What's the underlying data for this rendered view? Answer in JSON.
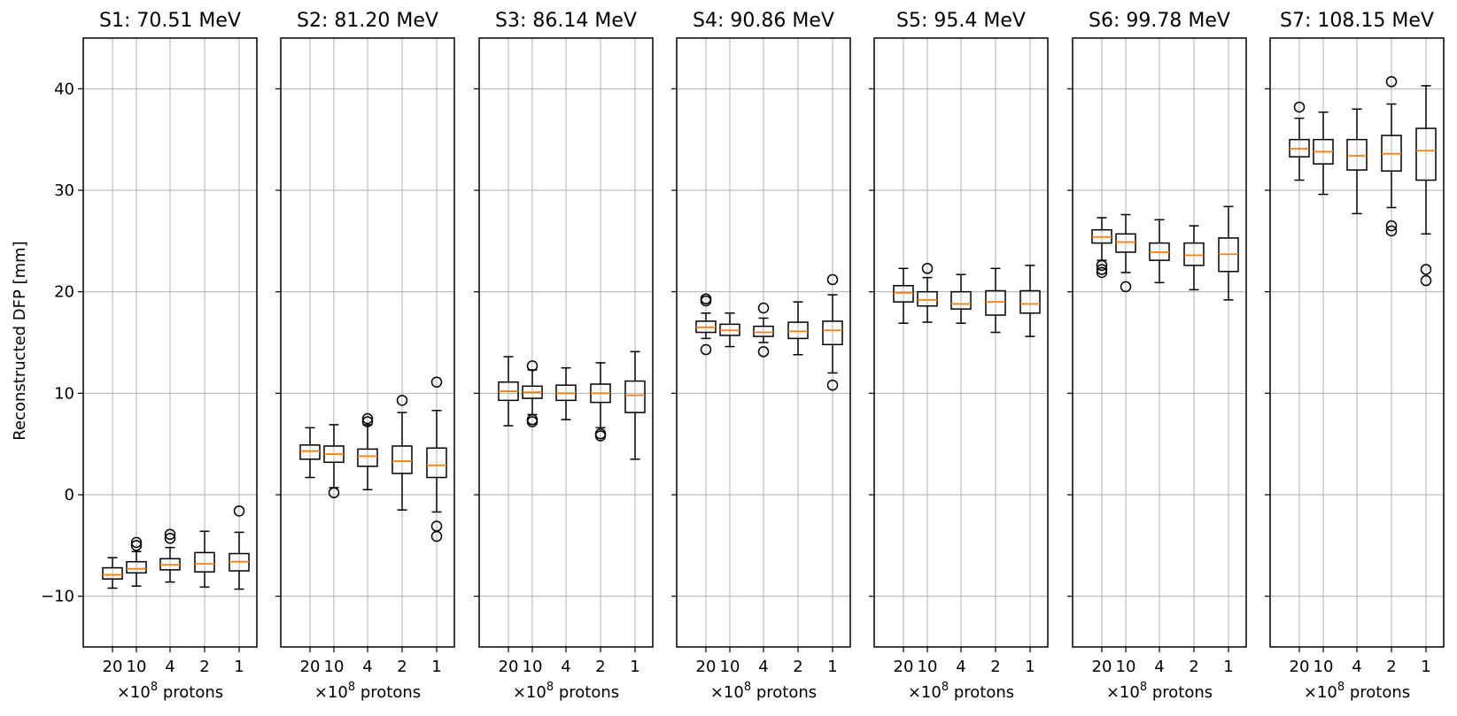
{
  "chart_data": {
    "type": "boxplot",
    "ylabel": "Reconstructed DFP [mm]",
    "xlabel_prefix": "×10",
    "xlabel_exponent": "8",
    "xlabel_suffix": " protons",
    "ylim": [
      -15,
      45
    ],
    "yticks": [
      -10,
      0,
      10,
      20,
      30,
      40
    ],
    "ytick_labels": [
      "−10",
      "0",
      "10",
      "20",
      "30",
      "40"
    ],
    "categories": [
      "20",
      "10",
      "4",
      "2",
      "1"
    ],
    "grid": true,
    "colors": {
      "median": "#ff7f0e",
      "box": "#000000",
      "grid": "#b0b0b0"
    },
    "panels": [
      {
        "title": "S1: 70.51 MeV",
        "boxes": [
          {
            "whislo": -9.2,
            "q1": -8.3,
            "med": -7.9,
            "q3": -7.2,
            "whishi": -6.2,
            "fliers": []
          },
          {
            "whislo": -9.0,
            "q1": -7.7,
            "med": -7.3,
            "q3": -6.6,
            "whishi": -5.6,
            "fliers": [
              -4.7,
              -5.0
            ]
          },
          {
            "whislo": -8.6,
            "q1": -7.4,
            "med": -6.9,
            "q3": -6.3,
            "whishi": -5.2,
            "fliers": [
              -3.9,
              -4.3
            ]
          },
          {
            "whislo": -9.1,
            "q1": -7.6,
            "med": -6.8,
            "q3": -5.7,
            "whishi": -3.6,
            "fliers": []
          },
          {
            "whislo": -9.3,
            "q1": -7.5,
            "med": -6.6,
            "q3": -5.8,
            "whishi": -3.7,
            "fliers": [
              -1.6
            ]
          }
        ]
      },
      {
        "title": "S2: 81.20 MeV",
        "boxes": [
          {
            "whislo": 1.7,
            "q1": 3.5,
            "med": 4.3,
            "q3": 4.9,
            "whishi": 6.6,
            "fliers": []
          },
          {
            "whislo": 0.7,
            "q1": 3.2,
            "med": 4.0,
            "q3": 4.8,
            "whishi": 6.9,
            "fliers": [
              0.2
            ]
          },
          {
            "whislo": 0.5,
            "q1": 2.8,
            "med": 3.8,
            "q3": 4.5,
            "whishi": 6.9,
            "fliers": [
              7.2,
              7.5
            ]
          },
          {
            "whislo": -1.5,
            "q1": 2.1,
            "med": 3.3,
            "q3": 4.8,
            "whishi": 8.1,
            "fliers": [
              9.3
            ]
          },
          {
            "whislo": -1.7,
            "q1": 1.7,
            "med": 2.9,
            "q3": 4.6,
            "whishi": 8.3,
            "fliers": [
              11.1,
              -3.1,
              -4.1
            ]
          }
        ]
      },
      {
        "title": "S3: 86.14 MeV",
        "boxes": [
          {
            "whislo": 6.8,
            "q1": 9.3,
            "med": 10.2,
            "q3": 11.1,
            "whishi": 13.6,
            "fliers": []
          },
          {
            "whislo": 7.9,
            "q1": 9.5,
            "med": 10.1,
            "q3": 10.7,
            "whishi": 12.3,
            "fliers": [
              12.7,
              7.4,
              7.2
            ]
          },
          {
            "whislo": 7.4,
            "q1": 9.3,
            "med": 10.0,
            "q3": 10.8,
            "whishi": 12.5,
            "fliers": []
          },
          {
            "whislo": 6.6,
            "q1": 9.1,
            "med": 10.0,
            "q3": 10.9,
            "whishi": 13.0,
            "fliers": [
              6.0,
              5.8
            ]
          },
          {
            "whislo": 3.5,
            "q1": 8.1,
            "med": 9.8,
            "q3": 11.2,
            "whishi": 14.1,
            "fliers": []
          }
        ]
      },
      {
        "title": "S4: 90.86 MeV",
        "boxes": [
          {
            "whislo": 15.4,
            "q1": 16.0,
            "med": 16.5,
            "q3": 17.1,
            "whishi": 17.9,
            "fliers": [
              19.3,
              19.1,
              14.3
            ]
          },
          {
            "whislo": 14.6,
            "q1": 15.7,
            "med": 16.2,
            "q3": 16.8,
            "whishi": 17.9,
            "fliers": []
          },
          {
            "whislo": 15.0,
            "q1": 15.6,
            "med": 16.0,
            "q3": 16.6,
            "whishi": 17.4,
            "fliers": [
              18.4,
              14.1
            ]
          },
          {
            "whislo": 13.8,
            "q1": 15.4,
            "med": 16.1,
            "q3": 17.0,
            "whishi": 19.0,
            "fliers": []
          },
          {
            "whislo": 12.0,
            "q1": 14.8,
            "med": 16.2,
            "q3": 17.1,
            "whishi": 19.7,
            "fliers": [
              21.2,
              10.8
            ]
          }
        ]
      },
      {
        "title": "S5: 95.4 MeV",
        "boxes": [
          {
            "whislo": 16.9,
            "q1": 19.0,
            "med": 19.9,
            "q3": 20.6,
            "whishi": 22.3,
            "fliers": []
          },
          {
            "whislo": 17.0,
            "q1": 18.6,
            "med": 19.2,
            "q3": 20.0,
            "whishi": 21.4,
            "fliers": [
              22.3
            ]
          },
          {
            "whislo": 16.9,
            "q1": 18.3,
            "med": 18.8,
            "q3": 20.0,
            "whishi": 21.7,
            "fliers": []
          },
          {
            "whislo": 16.0,
            "q1": 17.7,
            "med": 19.0,
            "q3": 20.1,
            "whishi": 22.3,
            "fliers": []
          },
          {
            "whislo": 15.6,
            "q1": 17.9,
            "med": 18.8,
            "q3": 20.1,
            "whishi": 22.6,
            "fliers": []
          }
        ]
      },
      {
        "title": "S6: 99.78 MeV",
        "boxes": [
          {
            "whislo": 23.1,
            "q1": 24.8,
            "med": 25.4,
            "q3": 26.1,
            "whishi": 27.3,
            "fliers": [
              22.6,
              22.2,
              21.9
            ]
          },
          {
            "whislo": 21.9,
            "q1": 23.9,
            "med": 24.9,
            "q3": 25.7,
            "whishi": 27.6,
            "fliers": [
              20.5
            ]
          },
          {
            "whislo": 20.9,
            "q1": 23.1,
            "med": 23.9,
            "q3": 24.8,
            "whishi": 27.1,
            "fliers": []
          },
          {
            "whislo": 20.2,
            "q1": 22.6,
            "med": 23.6,
            "q3": 24.8,
            "whishi": 26.5,
            "fliers": []
          },
          {
            "whislo": 19.2,
            "q1": 22.0,
            "med": 23.7,
            "q3": 25.3,
            "whishi": 28.4,
            "fliers": []
          }
        ]
      },
      {
        "title": "S7: 108.15 MeV",
        "boxes": [
          {
            "whislo": 31.0,
            "q1": 33.3,
            "med": 34.1,
            "q3": 35.0,
            "whishi": 37.1,
            "fliers": [
              38.2
            ]
          },
          {
            "whislo": 29.6,
            "q1": 32.6,
            "med": 33.8,
            "q3": 35.0,
            "whishi": 37.7,
            "fliers": []
          },
          {
            "whislo": 27.7,
            "q1": 32.0,
            "med": 33.4,
            "q3": 35.0,
            "whishi": 38.0,
            "fliers": []
          },
          {
            "whislo": 28.3,
            "q1": 31.9,
            "med": 33.6,
            "q3": 35.4,
            "whishi": 38.5,
            "fliers": [
              40.7,
              26.5,
              26.0
            ]
          },
          {
            "whislo": 25.7,
            "q1": 31.0,
            "med": 33.9,
            "q3": 36.1,
            "whishi": 40.3,
            "fliers": [
              22.2,
              21.1
            ]
          }
        ]
      }
    ]
  }
}
